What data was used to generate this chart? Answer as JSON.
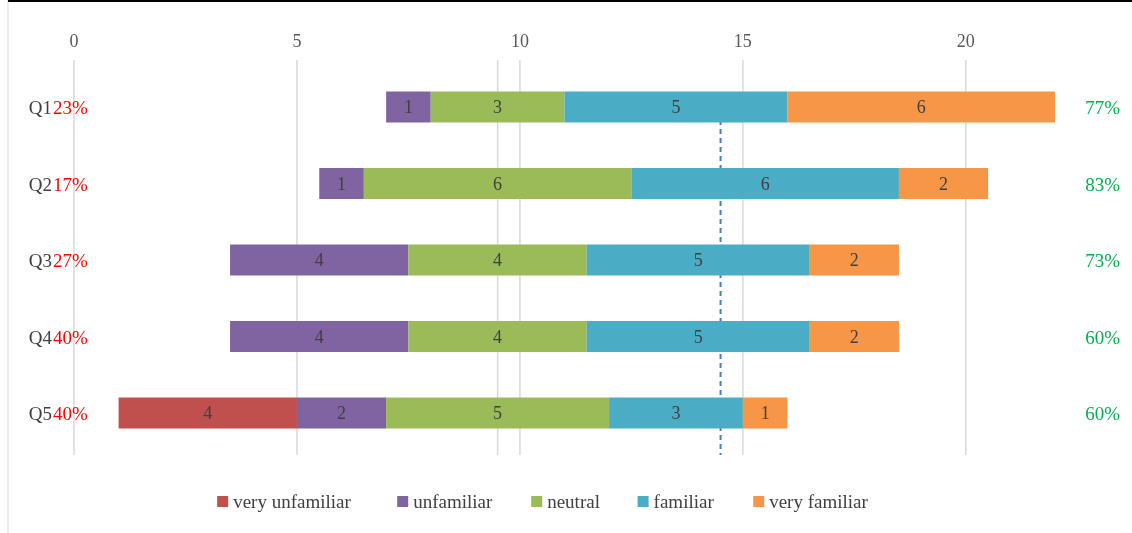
{
  "chart_data": {
    "type": "bar",
    "orientation": "horizontal",
    "categories": [
      "Q1",
      "Q2",
      "Q3",
      "Q4",
      "Q5"
    ],
    "series": [
      {
        "name": "very unfamiliar",
        "color": "#c0504d",
        "base": [
          null,
          null,
          null,
          null,
          1
        ],
        "values": [
          null,
          null,
          null,
          null,
          4
        ]
      },
      {
        "name": "unfamiliar",
        "color": "#8064a2",
        "base": [
          7,
          5.5,
          3.5,
          3.5,
          5
        ],
        "values": [
          1,
          1,
          4,
          4,
          2
        ]
      },
      {
        "name": "neutral",
        "color": "#9bbb59",
        "base": [
          8,
          6.5,
          7.5,
          7.5,
          7
        ],
        "values": [
          3,
          6,
          4,
          4,
          5
        ]
      },
      {
        "name": "familiar",
        "color": "#4bacc6",
        "base": [
          11,
          12.5,
          11.5,
          11.5,
          12
        ],
        "values": [
          5,
          6,
          5,
          5,
          3
        ]
      },
      {
        "name": "very familiar",
        "color": "#f79646",
        "base": [
          16,
          18.5,
          16.5,
          16.5,
          15
        ],
        "values": [
          6,
          2,
          2,
          2,
          1
        ]
      }
    ],
    "xlim": [
      0,
      22
    ],
    "xticks": [
      0,
      5,
      10,
      15,
      20
    ],
    "grid": "x",
    "data_labels": true,
    "legend": "bottom",
    "ref_lines": [
      {
        "axis": "x",
        "value": 9.5,
        "color": "#d9d9d9",
        "line_style": "solid"
      },
      {
        "axis": "x",
        "value": 14.5,
        "color": "#4a7ebb",
        "line_style": "dashed"
      }
    ],
    "annotations": [
      "23%",
      "17%",
      "27%",
      "40%",
      "40%",
      "77%",
      "83%",
      "73%",
      "60%",
      "60%"
    ]
  }
}
